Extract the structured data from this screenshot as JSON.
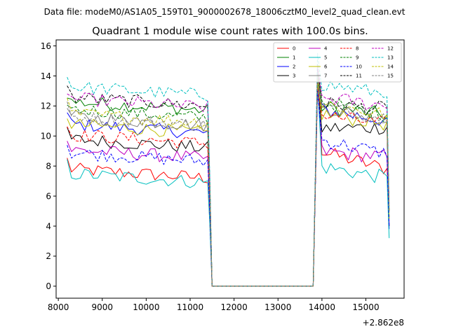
{
  "header": {
    "data_file": "Data file: modeM0/AS1A05_159T01_9000002678_18006cztM0_level2_quad_clean.evt"
  },
  "chart_data": {
    "type": "line",
    "title": "Quadrant 1 module wise count rates with 100.0s bins.",
    "xlabel": "",
    "ylabel": "",
    "x_offset_label": "+2.862e8",
    "xlim": [
      7950,
      15870
    ],
    "ylim": [
      -0.8,
      16.4
    ],
    "x_ticks": [
      8000,
      9000,
      10000,
      11000,
      12000,
      13000,
      14000,
      15000
    ],
    "x_tick_labels": [
      "8000",
      "9000",
      "10000",
      "11000",
      "12000",
      "13000",
      "14000",
      "15000"
    ],
    "y_ticks": [
      0,
      2,
      4,
      6,
      8,
      10,
      12,
      14,
      16
    ],
    "y_tick_labels": [
      "0",
      "2",
      "4",
      "6",
      "8",
      "10",
      "12",
      "14",
      "16"
    ],
    "grid": false,
    "legend_position": "top-right",
    "segments": {
      "seg1_x_start": 8200,
      "seg1_x_end": 11400,
      "seg1_step": 100,
      "drop_x": 11400,
      "gap_x_start": 11500,
      "gap_x_end": 13800,
      "seg2_x_start": 13900,
      "seg2_x_end": 15500,
      "seg2_step": 100
    },
    "series": [
      {
        "name": "0",
        "color": "#ff0000",
        "dash": "solid",
        "base1": 7.5,
        "base2": 9.0,
        "peak": 13.5,
        "end2": 7.8,
        "last": 5.5
      },
      {
        "name": "1",
        "color": "#008000",
        "dash": "solid",
        "base1": 12.0,
        "base2": 12.0,
        "peak": 14.0,
        "end2": 11.4,
        "last": 4.5
      },
      {
        "name": "2",
        "color": "#0000ff",
        "dash": "solid",
        "base1": 10.5,
        "base2": 11.8,
        "peak": 13.5,
        "end2": 11.0,
        "last": 3.8
      },
      {
        "name": "3",
        "color": "#000000",
        "dash": "solid",
        "base1": 9.5,
        "base2": 10.5,
        "peak": 13.8,
        "end2": 10.6,
        "last": 4.0
      },
      {
        "name": "4",
        "color": "#bf00bf",
        "dash": "solid",
        "base1": 8.8,
        "base2": 9.0,
        "peak": 13.3,
        "end2": 8.6,
        "last": 4.2
      },
      {
        "name": "5",
        "color": "#00bfbf",
        "dash": "solid",
        "base1": 7.2,
        "base2": 8.0,
        "peak": 13.5,
        "end2": 7.2,
        "last": 3.2
      },
      {
        "name": "6",
        "color": "#bfbf00",
        "dash": "solid",
        "base1": 10.5,
        "base2": 11.5,
        "peak": 13.6,
        "end2": 10.8,
        "last": 4.5
      },
      {
        "name": "7",
        "color": "#808080",
        "dash": "solid",
        "base1": 11.0,
        "base2": 12.0,
        "peak": 14.2,
        "end2": 11.0,
        "last": 5.0
      },
      {
        "name": "8",
        "color": "#ff0000",
        "dash": "dashed",
        "base1": 9.8,
        "base2": 11.4,
        "peak": 13.2,
        "end2": 10.8,
        "last": 5.0
      },
      {
        "name": "9",
        "color": "#008000",
        "dash": "dashed",
        "base1": 11.5,
        "base2": 12.3,
        "peak": 14.5,
        "end2": 11.4,
        "last": 5.2
      },
      {
        "name": "10",
        "color": "#0000ff",
        "dash": "dashed",
        "base1": 8.6,
        "base2": 9.8,
        "peak": 13.0,
        "end2": 8.8,
        "last": 4.0
      },
      {
        "name": "11",
        "color": "#000000",
        "dash": "dashed",
        "base1": 12.3,
        "base2": 12.2,
        "peak": 14.8,
        "end2": 11.8,
        "last": 5.0
      },
      {
        "name": "12",
        "color": "#bf00bf",
        "dash": "dashed",
        "base1": 12.2,
        "base2": 12.6,
        "peak": 14.6,
        "end2": 12.0,
        "last": 5.5
      },
      {
        "name": "13",
        "color": "#00bfbf",
        "dash": "dashed",
        "base1": 13.0,
        "base2": 13.5,
        "peak": 15.5,
        "end2": 12.8,
        "last": 5.0
      },
      {
        "name": "14",
        "color": "#bfbf00",
        "dash": "dashed",
        "base1": 11.2,
        "base2": 12.2,
        "peak": 14.0,
        "end2": 11.4,
        "last": 5.0
      },
      {
        "name": "15",
        "color": "#808080",
        "dash": "dashed",
        "base1": 11.0,
        "base2": 12.0,
        "peak": 14.0,
        "end2": 11.2,
        "last": 5.0
      }
    ]
  }
}
